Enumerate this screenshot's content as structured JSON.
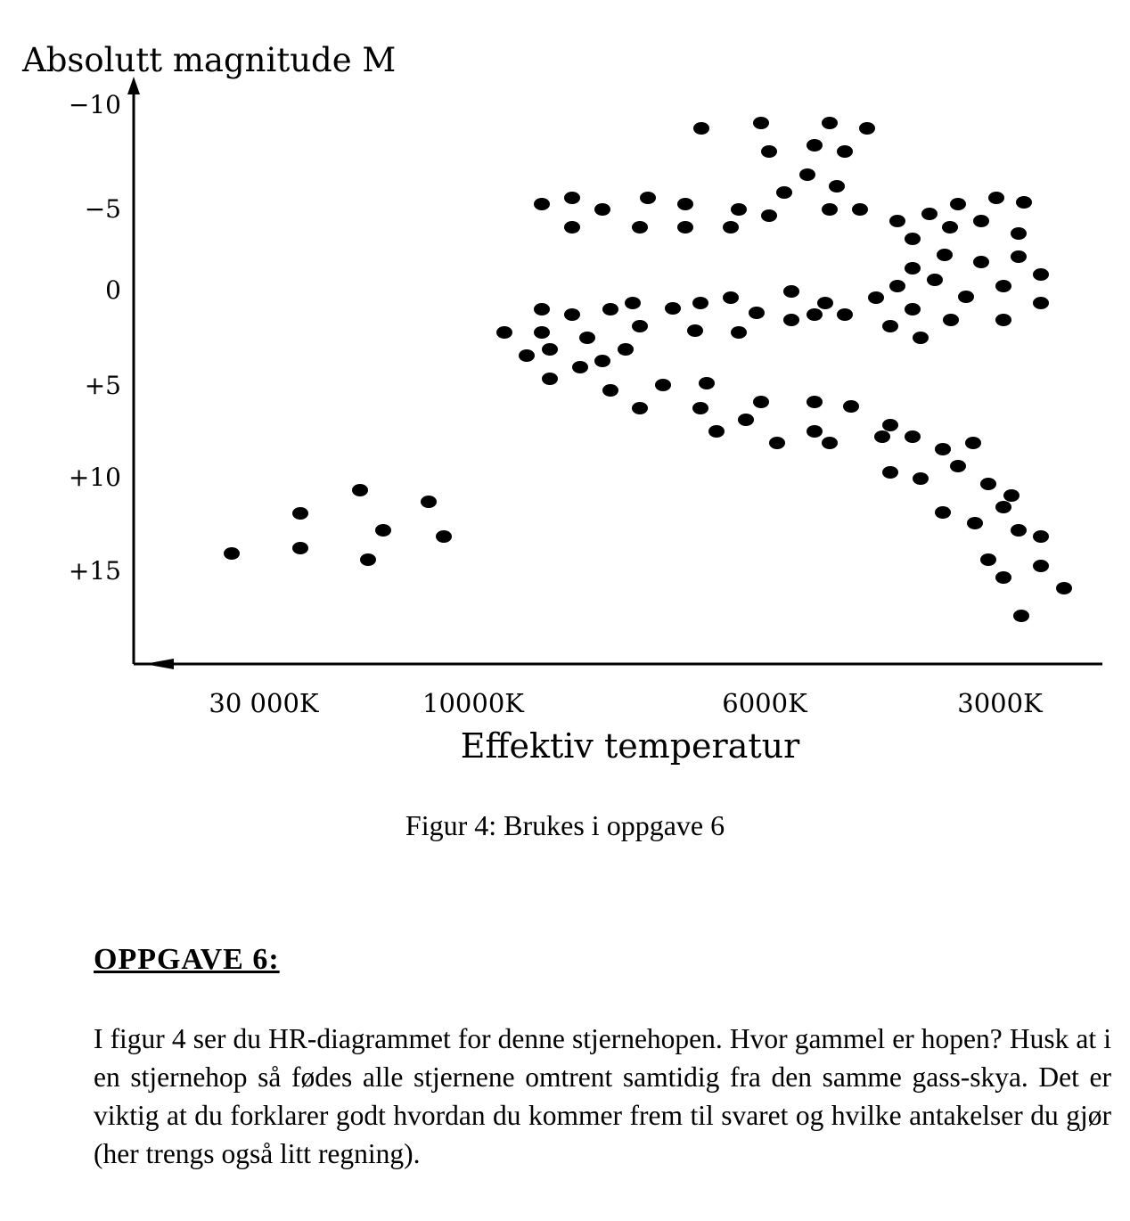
{
  "chart_data": {
    "type": "scatter",
    "ylabel": "Absolutt magnitude M",
    "xlabel": "Effektiv temperatur",
    "y_ticks": [
      "−10",
      "−5",
      "0",
      "+5",
      "+10",
      "+15"
    ],
    "x_ticks": [
      "30 000K",
      "10000K",
      "6000K",
      "3000K"
    ],
    "note": "x axis runs from hot (left) to cool (right); y axis is inverted (bright stars at top)",
    "points": [
      [
        787,
        144
      ],
      [
        854,
        138
      ],
      [
        931,
        138
      ],
      [
        973,
        144
      ],
      [
        863,
        170
      ],
      [
        914,
        163
      ],
      [
        948,
        170
      ],
      [
        906,
        196
      ],
      [
        880,
        216
      ],
      [
        939,
        209
      ],
      [
        931,
        235
      ],
      [
        965,
        235
      ],
      [
        608,
        229
      ],
      [
        642,
        222
      ],
      [
        676,
        235
      ],
      [
        727,
        222
      ],
      [
        769,
        229
      ],
      [
        829,
        235
      ],
      [
        863,
        242
      ],
      [
        642,
        255
      ],
      [
        718,
        255
      ],
      [
        769,
        255
      ],
      [
        820,
        255
      ],
      [
        1007,
        248
      ],
      [
        1043,
        240
      ],
      [
        1075,
        229
      ],
      [
        1118,
        222
      ],
      [
        1149,
        227
      ],
      [
        1024,
        268
      ],
      [
        1066,
        255
      ],
      [
        1101,
        248
      ],
      [
        1143,
        262
      ],
      [
        1024,
        301
      ],
      [
        1060,
        286
      ],
      [
        1101,
        294
      ],
      [
        1143,
        288
      ],
      [
        1007,
        321
      ],
      [
        1049,
        314
      ],
      [
        1084,
        333
      ],
      [
        1126,
        321
      ],
      [
        1168,
        308
      ],
      [
        983,
        334
      ],
      [
        1024,
        347
      ],
      [
        999,
        366
      ],
      [
        1033,
        379
      ],
      [
        1067,
        359
      ],
      [
        1126,
        359
      ],
      [
        1168,
        340
      ],
      [
        608,
        347
      ],
      [
        642,
        353
      ],
      [
        685,
        347
      ],
      [
        710,
        340
      ],
      [
        755,
        346
      ],
      [
        786,
        340
      ],
      [
        820,
        334
      ],
      [
        849,
        351
      ],
      [
        888,
        327
      ],
      [
        888,
        359
      ],
      [
        914,
        353
      ],
      [
        926,
        340
      ],
      [
        948,
        353
      ],
      [
        566,
        373
      ],
      [
        608,
        373
      ],
      [
        659,
        379
      ],
      [
        718,
        366
      ],
      [
        780,
        371
      ],
      [
        829,
        373
      ],
      [
        591,
        399
      ],
      [
        617,
        392
      ],
      [
        651,
        412
      ],
      [
        676,
        405
      ],
      [
        702,
        392
      ],
      [
        617,
        425
      ],
      [
        685,
        438
      ],
      [
        744,
        432
      ],
      [
        793,
        430
      ],
      [
        718,
        458
      ],
      [
        786,
        458
      ],
      [
        804,
        484
      ],
      [
        837,
        471
      ],
      [
        854,
        451
      ],
      [
        872,
        497
      ],
      [
        914,
        451
      ],
      [
        914,
        484
      ],
      [
        931,
        497
      ],
      [
        955,
        456
      ],
      [
        999,
        477
      ],
      [
        990,
        490
      ],
      [
        1024,
        490
      ],
      [
        1058,
        504
      ],
      [
        1092,
        497
      ],
      [
        999,
        530
      ],
      [
        1033,
        537
      ],
      [
        1075,
        523
      ],
      [
        1109,
        543
      ],
      [
        1135,
        556
      ],
      [
        1126,
        569
      ],
      [
        1058,
        575
      ],
      [
        1094,
        587
      ],
      [
        1143,
        595
      ],
      [
        1168,
        602
      ],
      [
        1109,
        628
      ],
      [
        1126,
        648
      ],
      [
        1168,
        635
      ],
      [
        1194,
        660
      ],
      [
        1146,
        691
      ],
      [
        337,
        576
      ],
      [
        404,
        550
      ],
      [
        481,
        563
      ],
      [
        430,
        595
      ],
      [
        498,
        602
      ],
      [
        337,
        615
      ],
      [
        413,
        628
      ],
      [
        260,
        621
      ]
    ]
  },
  "caption": "Figur 4: Brukes i oppgave 6",
  "heading": "OPPGAVE 6:",
  "body": "I figur 4 ser du HR-diagrammet for denne stjernehopen. Hvor gammel er hopen? Husk at i en stjernehop så fødes alle stjernene omtrent samtidig fra den samme gass-skya. Det er viktig at du forklarer godt hvordan du kommer frem til svaret og hvilke antakelser du gjør (her trengs også litt regning)."
}
